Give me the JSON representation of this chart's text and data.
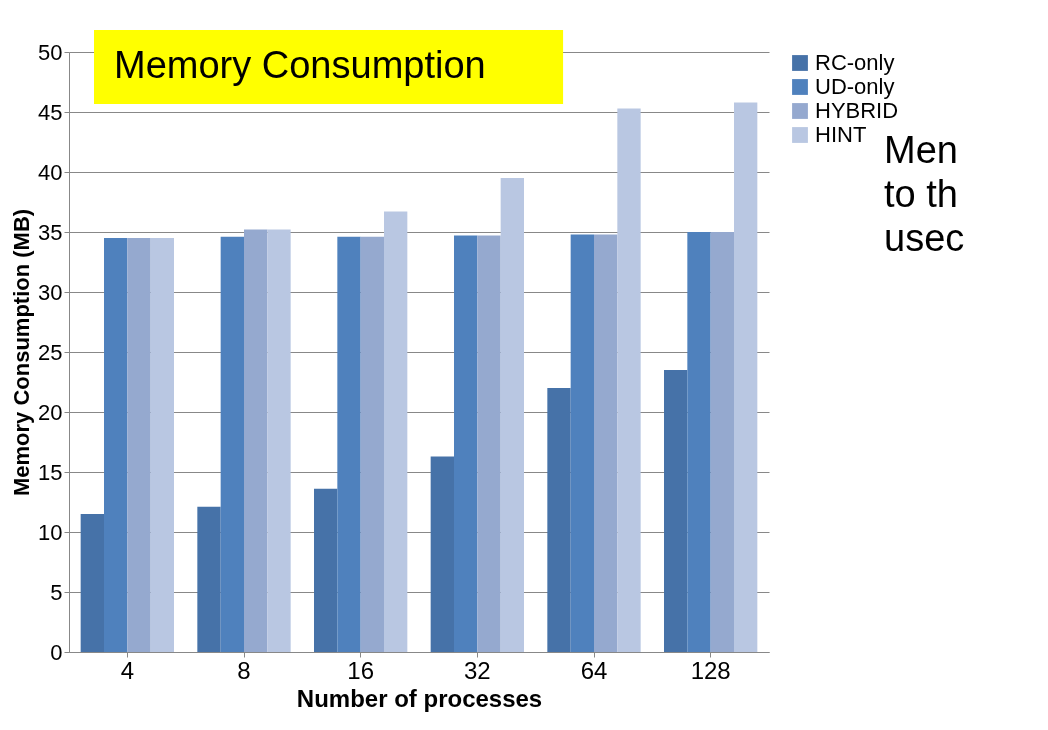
{
  "chart_data": {
    "type": "bar",
    "title": "Memory Consumption",
    "xlabel": "Number of processes",
    "ylabel": "Memory Consumption (MB)",
    "categories": [
      "4",
      "8",
      "16",
      "32",
      "64",
      "128"
    ],
    "series": [
      {
        "name": "RC-only",
        "color": "#4672a8",
        "values": [
          11.5,
          12.1,
          13.6,
          16.3,
          22.0,
          23.5
        ]
      },
      {
        "name": "UD-only",
        "color": "#4f81bd",
        "values": [
          34.5,
          34.6,
          34.6,
          34.7,
          34.8,
          35.0
        ]
      },
      {
        "name": "HYBRID",
        "color": "#95a9cf",
        "values": [
          34.5,
          35.2,
          34.6,
          34.7,
          34.8,
          35.0
        ]
      },
      {
        "name": "HINT",
        "color": "#b9c7e2",
        "values": [
          34.5,
          35.2,
          36.7,
          39.5,
          45.3,
          45.8
        ]
      }
    ],
    "ylim": [
      0,
      50
    ],
    "yticks": [
      0,
      5,
      10,
      15,
      20,
      25,
      30,
      35,
      40,
      45,
      50
    ],
    "grid": "y",
    "legend": "right",
    "annotations": [
      "Men",
      "to th",
      "usec"
    ]
  }
}
